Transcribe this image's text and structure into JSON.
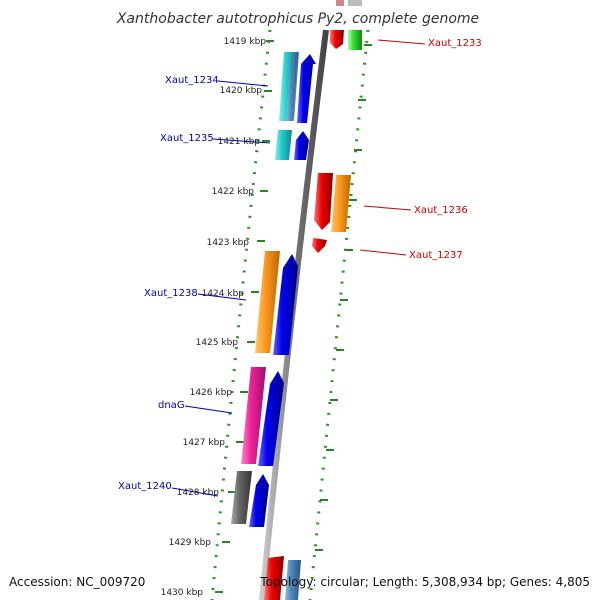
{
  "title": "Xanthobacter autotrophicus Py2, complete genome",
  "footer": {
    "accession": "Accession: NC_009720",
    "topology": "Topology: circular; Length: 5,308,934 bp; Genes: 4,805"
  },
  "ticks": [
    "1419 kbp",
    "1420 kbp",
    "1421 kbp",
    "1422 kbp",
    "1423 kbp",
    "1424 kbp",
    "1425 kbp",
    "1426 kbp",
    "1427 kbp",
    "1428 kbp",
    "1429 kbp",
    "1430 kbp"
  ],
  "left_labels": [
    "Xaut_1234",
    "Xaut_1235",
    "Xaut_1238",
    "dnaG",
    "Xaut_1240"
  ],
  "right_labels": [
    "Xaut_1233",
    "Xaut_1236",
    "Xaut_1237"
  ],
  "colors": {
    "forward_label": "#0000aa",
    "reverse_label": "#cc0000",
    "dotted_ring": "#229922",
    "backbone": "#888888"
  }
}
